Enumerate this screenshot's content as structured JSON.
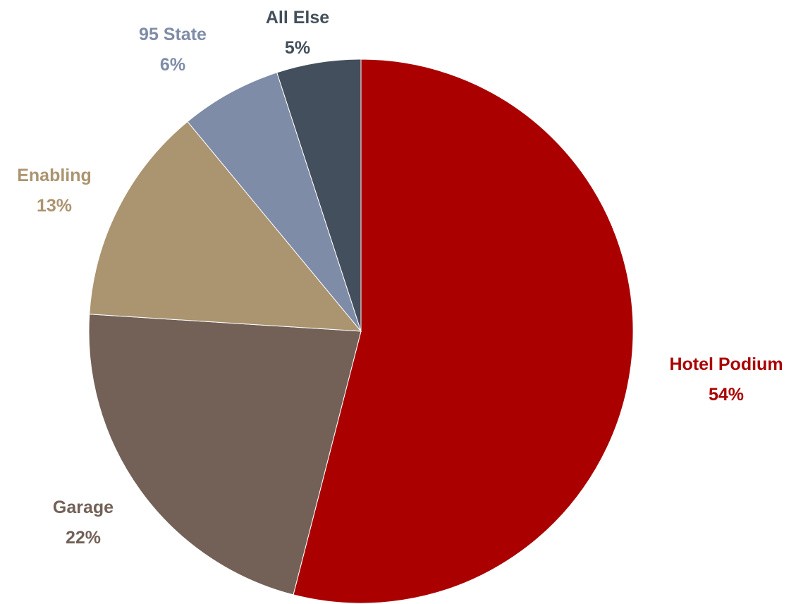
{
  "chart_data": {
    "type": "pie",
    "title": "",
    "slices": [
      {
        "label": "Hotel Podium",
        "percent_label": "54%",
        "value": 54,
        "color": "#aa0000"
      },
      {
        "label": "Garage",
        "percent_label": "22%",
        "value": 22,
        "color": "#736157"
      },
      {
        "label": "Enabling",
        "percent_label": "13%",
        "value": 13,
        "color": "#ab9470"
      },
      {
        "label": "95 State",
        "percent_label": "6%",
        "value": 6,
        "color": "#7f8ca7"
      },
      {
        "label": "All Else",
        "percent_label": "5%",
        "value": 5,
        "color": "#434f5c"
      }
    ],
    "start_angle": "12 o'clock",
    "direction": "clockwise",
    "legend": "none",
    "data_labels": "outside"
  }
}
